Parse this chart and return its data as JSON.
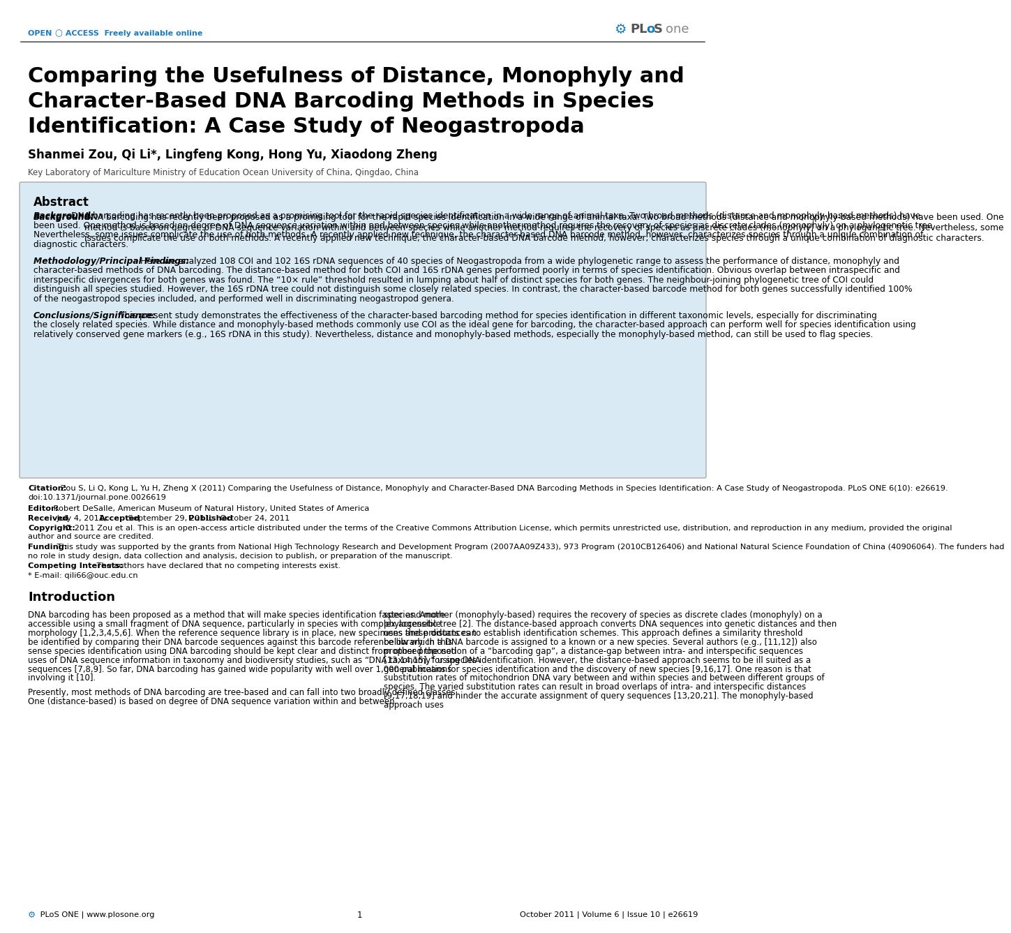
{
  "background_color": "#ffffff",
  "header_line_color": "#555555",
  "open_access_text": "OPEN",
  "open_access_full": "OPEN ○ ACCESS  Freely available online",
  "plos_one_text": "PLoS one",
  "header_blue": "#1a7bbf",
  "title": "Comparing the Usefulness of Distance, Monophyly and\nCharacter-Based DNA Barcoding Methods in Species\nIdentification: A Case Study of Neogastropoda",
  "authors": "Shanmei Zou, Qi Li*, Lingfeng Kong, Hong Yu, Xiaodong Zheng",
  "affiliation": "Key Laboratory of Mariculture Ministry of Education Ocean University of China, Qingdao, China",
  "abstract_bg": "#daeaf5",
  "abstract_border": "#aaaaaa",
  "abstract_title": "Abstract",
  "abstract_background_label": "Background:",
  "abstract_background_text": "DNA barcoding has recently been proposed as a promising tool for the rapid species identification in a wide range of animal taxa. Two broad methods (distance and monophyly-based methods) have been used. One method is based on degree of DNA sequence variation within and between species while another method requires the recovery of species as discrete clades (monophyly) on a phylogenetic tree. Nevertheless, some issues complicate the use of both methods. A recently applied new technique, the character-based DNA barcode method, however, characterizes species through a unique combination of diagnostic characters.",
  "abstract_method_label": "Methodology/Principal Findings:",
  "abstract_method_text": "Here we analyzed 108 COI and 102 16S rDNA sequences of 40 species of Neogastropoda from a wide phylogenetic range to assess the performance of distance, monophyly and character-based methods of DNA barcoding. The distance-based method for both COI and 16S rDNA genes performed poorly in terms of species identification. Obvious overlap between intraspecific and interspecific divergences for both genes was found. The “10× rule” threshold resulted in lumping about half of distinct species for both genes. The neighbour-joining phylogenetic tree of COI could distinguish all species studied. However, the 16S rDNA tree could not distinguish some closely related species. In contrast, the character-based barcode method for both genes successfully identified 100% of the neogastropod species included, and performed well in discriminating neogastropod genera.",
  "abstract_conclusion_label": "Conclusions/Significance:",
  "abstract_conclusion_text": "This present study demonstrates the effectiveness of the character-based barcoding method for species identification in different taxonomic levels, especially for discriminating the closely related species. While distance and monophyly-based methods commonly use COI as the ideal gene for barcoding, the character-based approach can perform well for species identification using relatively conserved gene markers (e.g., 16S rDNA in this study). Nevertheless, distance and monophyly-based methods, especially the monophyly-based method, can still be used to flag species.",
  "citation_label": "Citation:",
  "citation_text": "Zou S, Li Q, Kong L, Yu H, Zheng X (2011) Comparing the Usefulness of Distance, Monophyly and Character-Based DNA Barcoding Methods in Species Identification: A Case Study of Neogastropoda. PLoS ONE 6(10): e26619. doi:10.1371/journal.pone.0026619",
  "editor_label": "Editor:",
  "editor_text": "Robert DeSalle, American Museum of Natural History, United States of America",
  "received_label": "Received",
  "received_text": "July 4, 2011;",
  "accepted_label": "Accepted",
  "accepted_text": "September 29, 2011;",
  "published_label": "Published",
  "published_text": "October 24, 2011",
  "copyright_label": "Copyright:",
  "copyright_text": "© 2011 Zou et al. This is an open-access article distributed under the terms of the Creative Commons Attribution License, which permits unrestricted use, distribution, and reproduction in any medium, provided the original author and source are credited.",
  "funding_label": "Funding:",
  "funding_text": "This study was supported by the grants from National High Technology Research and Development Program (2007AA09Z433), 973 Program (2010CB126406) and National Natural Science Foundation of China (40906064). The funders had no role in study design, data collection and analysis, decision to publish, or preparation of the manuscript.",
  "competing_label": "Competing Interests:",
  "competing_text": "The authors have declared that no competing interests exist.",
  "email_text": "* E-mail: qili66@ouc.edu.cn",
  "intro_title": "Introduction",
  "intro_left": "DNA barcoding has been proposed as a method that will make species identification faster and more accessible using a small fragment of DNA sequence, particularly in species with complex accessible morphology [1,2,3,4,5,6]. When the reference sequence library is in place, new specimens and products can be identified by comparing their DNA barcode sequences against this barcode reference library. In this sense species identification using DNA barcoding should be kept clear and distinct from other proposed uses of DNA sequence information in taxonomy and biodiversity studies, such as “DNA taxonomy” using DNA sequences [7,8,9]. So far, DNA barcoding has gained wide popularity with well over 1,000 publications involving it [10].\n\nPresently, most methods of DNA barcoding are tree-based and can fall into two broadly defined classes. One (distance-based) is based on degree of DNA sequence variation within and between",
  "intro_right": "species. Another (monophyly-based) requires the recovery of species as discrete clades (monophyly) on a phylogenetic tree [2]. The distance-based approach converts DNA sequences into genetic distances and then uses these distances to establish identification schemes. This approach defines a similarity threshold below which a DNA barcode is assigned to a known or a new species. Several authors (e.g., [11,12]) also proposed the notion of a “barcoding gap”, a distance-gap between intra- and interspecific sequences [13,14,15], for species identification. However, the distance-based approach seems to be ill suited as a general means for species identification and the discovery of new species [9,16,17]. One reason is that substitution rates of mitochondrion DNA vary between and within species and between different groups of species. The varied substitution rates can result in broad overlaps of intra- and interspecific distances [9,17,18,19] and hinder the accurate assignment of query sequences [13,20,21]. The monophyly-based approach uses",
  "footer_left": "PLoS ONE | www.plosone.org",
  "footer_middle": "1",
  "footer_right": "October 2011 | Volume 6 | Issue 10 | e26619",
  "text_color": "#000000",
  "gray_text": "#444444"
}
